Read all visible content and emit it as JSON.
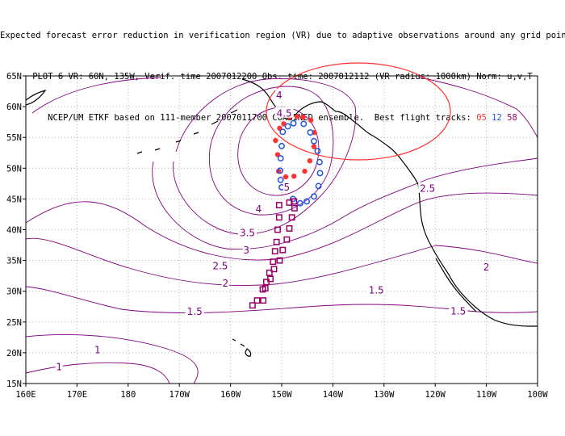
{
  "title": {
    "line1": "Expected forecast error reduction in verification region (VR) due to adaptive observations around any grid point.",
    "line2": "PLOT 6 VR: 60N, 135W, Verif. time 2007012200 Obs. time: 2007012112 (VR radius: 1000km) Norm: u,v,T",
    "line3_prefix": "NCEP/UM ETKF based on 111-member 2007011700 COMBINED ensemble.  Best flight tracks:",
    "tracks": [
      "05",
      "12",
      "58"
    ]
  },
  "axes": {
    "lon_ticks": [
      "160E",
      "170E",
      "180",
      "170W",
      "160W",
      "150W",
      "140W",
      "130W",
      "120W",
      "110W",
      "100W"
    ],
    "lat_ticks": [
      "65N",
      "60N",
      "55N",
      "50N",
      "45N",
      "40N",
      "35N",
      "30N",
      "25N",
      "20N",
      "15N"
    ],
    "lon_range": [
      160,
      260
    ],
    "lat_range": [
      15,
      65
    ]
  },
  "colors": {
    "contour": "#800080",
    "coast": "#000000",
    "grid": "#b0b0b0",
    "vr_circle": "#ff3333",
    "track_05": "#ff3333",
    "track_12": "#2255dd",
    "track_58": "#990066"
  },
  "verification_region": {
    "center_lat": 60,
    "center_lon_west": 135,
    "radius_km": 1000
  },
  "contour_labels": [
    {
      "text": "4",
      "lon": 209.5,
      "lat": 62.0
    },
    {
      "text": "4.5",
      "lon": 210.5,
      "lat": 59.0
    },
    {
      "text": "5",
      "lon": 211.0,
      "lat": 47.0
    },
    {
      "text": "4",
      "lon": 205.5,
      "lat": 43.5
    },
    {
      "text": "3.5",
      "lon": 203.3,
      "lat": 39.6
    },
    {
      "text": "3",
      "lon": 203.1,
      "lat": 36.8
    },
    {
      "text": "2.5",
      "lon": 198.0,
      "lat": 34.2
    },
    {
      "text": "2",
      "lon": 199.0,
      "lat": 31.4
    },
    {
      "text": "1.5",
      "lon": 193.0,
      "lat": 26.8
    },
    {
      "text": "1",
      "lon": 174.0,
      "lat": 20.6
    },
    {
      "text": "1",
      "lon": 166.5,
      "lat": 17.8
    },
    {
      "text": "2.5",
      "lon": 238.5,
      "lat": 46.8
    },
    {
      "text": "2",
      "lon": 250.0,
      "lat": 34.0
    },
    {
      "text": "1.5",
      "lon": 228.5,
      "lat": 30.3
    },
    {
      "text": "1.5",
      "lon": 244.5,
      "lat": 26.9
    }
  ],
  "tracks": {
    "05": [
      [
        208.8,
        54.5
      ],
      [
        209.2,
        52.2
      ],
      [
        209.4,
        49.5
      ],
      [
        210.8,
        48.6
      ],
      [
        212.4,
        48.7
      ],
      [
        214.5,
        49.5
      ],
      [
        215.5,
        51.2
      ],
      [
        216.3,
        53.5
      ],
      [
        216.4,
        55.8
      ],
      [
        215.7,
        57.8
      ],
      [
        214.2,
        58.3
      ],
      [
        213.0,
        58.4
      ],
      [
        211.5,
        58.3
      ],
      [
        210.4,
        57.2
      ],
      [
        209.6,
        56.5
      ]
    ],
    "12": [
      [
        210.2,
        55.9
      ],
      [
        210.0,
        53.6
      ],
      [
        209.8,
        51.6
      ],
      [
        209.7,
        49.6
      ],
      [
        209.8,
        48.1
      ],
      [
        210.0,
        46.9
      ],
      [
        212.2,
        45.0
      ],
      [
        213.6,
        44.3
      ],
      [
        214.9,
        44.6
      ],
      [
        216.3,
        45.4
      ],
      [
        217.2,
        47.1
      ],
      [
        217.5,
        49.2
      ],
      [
        217.4,
        51.0
      ],
      [
        217.0,
        52.8
      ],
      [
        216.3,
        54.4
      ],
      [
        215.6,
        55.8
      ],
      [
        214.3,
        57.2
      ],
      [
        212.3,
        57.3
      ],
      [
        211.2,
        56.8
      ]
    ],
    "58": [
      [
        209.5,
        44.0
      ],
      [
        209.5,
        42.0
      ],
      [
        209.2,
        40.0
      ],
      [
        209.0,
        38.0
      ],
      [
        208.7,
        36.5
      ],
      [
        208.3,
        34.8
      ],
      [
        207.6,
        33.0
      ],
      [
        207.0,
        31.5
      ],
      [
        206.3,
        30.3
      ],
      [
        205.2,
        28.5
      ],
      [
        204.3,
        27.7
      ],
      [
        206.4,
        28.5
      ],
      [
        206.8,
        30.5
      ],
      [
        207.8,
        32.0
      ],
      [
        208.5,
        33.6
      ],
      [
        209.6,
        35.0
      ],
      [
        210.2,
        36.7
      ],
      [
        211.0,
        38.4
      ],
      [
        211.5,
        40.2
      ],
      [
        212.0,
        42.0
      ],
      [
        212.5,
        43.5
      ],
      [
        212.4,
        44.6
      ],
      [
        211.5,
        44.4
      ]
    ]
  }
}
